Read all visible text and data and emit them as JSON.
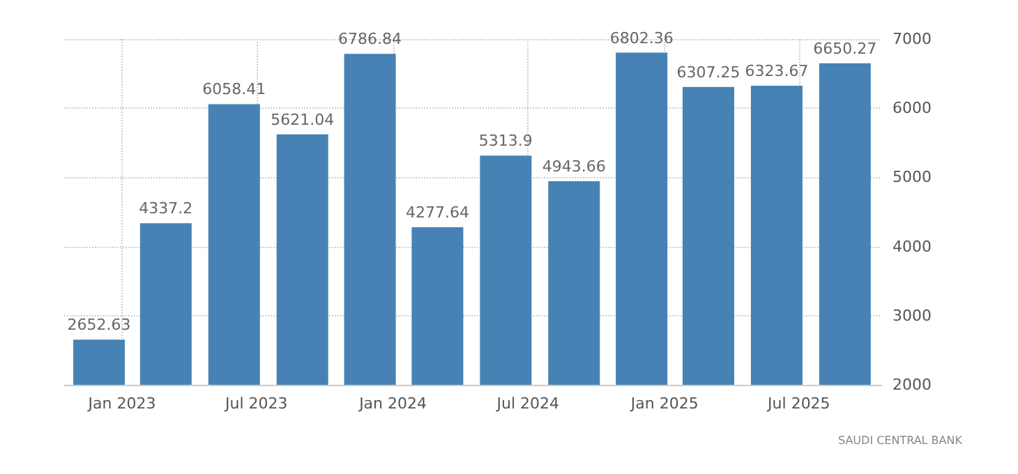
{
  "chart_data": {
    "type": "bar",
    "x": [
      "2022-12",
      "2023-03",
      "2023-06",
      "2023-09",
      "2023-12",
      "2024-03",
      "2024-06",
      "2024-09",
      "2024-12",
      "2025-03",
      "2025-06",
      "2025-09"
    ],
    "values": [
      2652.63,
      4337.2,
      6058.41,
      5621.04,
      6786.84,
      4277.64,
      5313.9,
      4943.66,
      6802.36,
      6307.25,
      6323.67,
      6650.27
    ],
    "color": "#4682b4",
    "xlim": [
      "2022-10-15",
      "2025-10-20"
    ],
    "xticks": [
      {
        "value": "2023-01",
        "label": "Jan 2023"
      },
      {
        "value": "2023-07",
        "label": "Jul 2023"
      },
      {
        "value": "2024-01",
        "label": "Jan 2024"
      },
      {
        "value": "2024-07",
        "label": "Jul 2024"
      },
      {
        "value": "2025-01",
        "label": "Jan 2025"
      },
      {
        "value": "2025-07",
        "label": "Jul 2025"
      }
    ],
    "ylim": [
      2000,
      7000
    ],
    "yticks": [
      2000,
      3000,
      4000,
      5000,
      6000,
      7000
    ],
    "grid": true,
    "data_labels": true,
    "annotations": [
      "SAUDI CENTRAL BANK"
    ]
  }
}
